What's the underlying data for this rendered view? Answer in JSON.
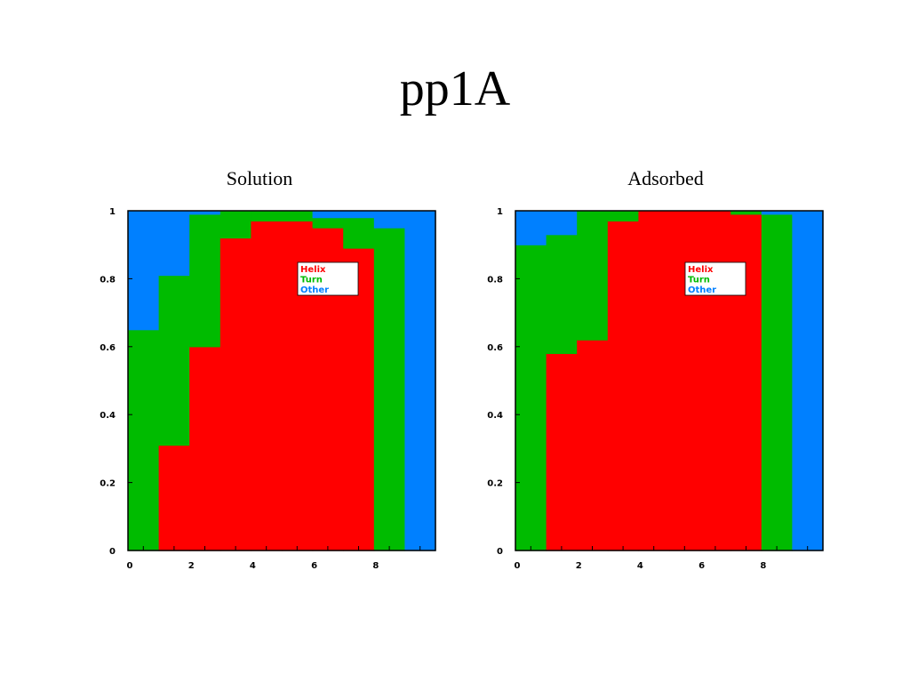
{
  "slide": {
    "title": "pp1A"
  },
  "colors": {
    "Helix": "#ff0000",
    "Turn": "#00bb00",
    "Other": "#0080ff"
  },
  "chart_data": [
    {
      "type": "bar",
      "stacked": true,
      "title": "Solution",
      "xlabel": "",
      "ylabel": "",
      "categories": [
        0,
        1,
        2,
        3,
        4,
        5,
        6,
        7,
        8,
        9
      ],
      "x_ticks": [
        0,
        2,
        4,
        6,
        8
      ],
      "y_ticks": [
        0,
        0.2,
        0.4,
        0.6,
        0.8,
        1
      ],
      "xlim": [
        -0.5,
        9.5
      ],
      "ylim": [
        0,
        1
      ],
      "legend_position": "upper-center",
      "series": [
        {
          "name": "Helix",
          "values": [
            0,
            0.31,
            0.6,
            0.92,
            0.97,
            0.97,
            0.95,
            0.89,
            0,
            0
          ]
        },
        {
          "name": "Turn",
          "values": [
            0.65,
            0.5,
            0.39,
            0.08,
            0.03,
            0.03,
            0.03,
            0.09,
            0.95,
            0
          ]
        },
        {
          "name": "Other",
          "values": [
            0.35,
            0.19,
            0.01,
            0,
            0,
            0,
            0.02,
            0.02,
            0.05,
            1
          ]
        }
      ]
    },
    {
      "type": "bar",
      "stacked": true,
      "title": "Adsorbed",
      "xlabel": "",
      "ylabel": "",
      "categories": [
        0,
        1,
        2,
        3,
        4,
        5,
        6,
        7,
        8,
        9
      ],
      "x_ticks": [
        0,
        2,
        4,
        6,
        8
      ],
      "y_ticks": [
        0,
        0.2,
        0.4,
        0.6,
        0.8,
        1
      ],
      "xlim": [
        -0.5,
        9.5
      ],
      "ylim": [
        0,
        1
      ],
      "legend_position": "upper-center",
      "series": [
        {
          "name": "Helix",
          "values": [
            0,
            0.58,
            0.62,
            0.97,
            1,
            1,
            1,
            0.99,
            0,
            0
          ]
        },
        {
          "name": "Turn",
          "values": [
            0.9,
            0.35,
            0.38,
            0.03,
            0,
            0,
            0,
            0.01,
            0.99,
            0
          ]
        },
        {
          "name": "Other",
          "values": [
            0.1,
            0.07,
            0,
            0,
            0,
            0,
            0,
            0,
            0.01,
            1
          ]
        }
      ]
    }
  ]
}
